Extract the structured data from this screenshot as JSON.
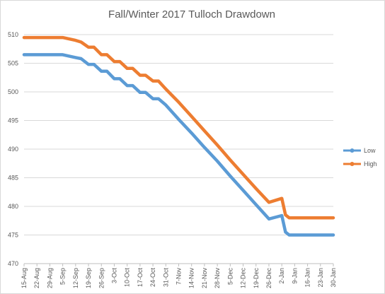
{
  "chart_data": {
    "type": "line",
    "title": "Fall/Winter 2017 Tulloch Drawdown",
    "xlabel": "",
    "ylabel": "",
    "ylim": [
      470,
      510
    ],
    "yticks": [
      470,
      475,
      480,
      485,
      490,
      495,
      500,
      505,
      510
    ],
    "grid": true,
    "legend_position": "right",
    "x_tick_labels": [
      "15-Aug",
      "22-Aug",
      "29-Aug",
      "5-Sep",
      "12-Sep",
      "19-Sep",
      "26-Sep",
      "3-Oct",
      "10-Oct",
      "17-Oct",
      "24-Oct",
      "31-Oct",
      "7-Nov",
      "14-Nov",
      "21-Nov",
      "28-Nov",
      "5-Dec",
      "12-Dec",
      "19-Dec",
      "26-Dec",
      "2-Jan",
      "9-Jan",
      "16-Jan",
      "23-Jan",
      "30-Jan"
    ],
    "x": [
      "15-Aug",
      "22-Aug",
      "29-Aug",
      "5-Sep",
      "12-Sep",
      "15-Sep",
      "19-Sep",
      "22-Sep",
      "26-Sep",
      "29-Sep",
      "3-Oct",
      "6-Oct",
      "10-Oct",
      "13-Oct",
      "17-Oct",
      "20-Oct",
      "24-Oct",
      "27-Oct",
      "31-Oct",
      "7-Nov",
      "14-Nov",
      "21-Nov",
      "28-Nov",
      "5-Dec",
      "12-Dec",
      "19-Dec",
      "26-Dec",
      "2-Jan",
      "4-Jan",
      "6-Jan",
      "9-Jan",
      "16-Jan",
      "23-Jan",
      "30-Jan"
    ],
    "series": [
      {
        "name": "Low",
        "color": "#5b9bd5",
        "values": [
          506.5,
          506.5,
          506.5,
          506.5,
          506.0,
          505.8,
          504.8,
          504.8,
          503.6,
          503.6,
          502.3,
          502.3,
          501.1,
          501.1,
          499.9,
          499.9,
          498.8,
          498.8,
          497.7,
          495.2,
          492.8,
          490.3,
          487.9,
          485.3,
          482.8,
          480.3,
          477.8,
          478.4,
          475.5,
          475.0,
          475.0,
          475.0,
          475.0,
          475.0
        ]
      },
      {
        "name": "High",
        "color": "#ed7d31",
        "values": [
          509.5,
          509.5,
          509.5,
          509.5,
          509.0,
          508.7,
          507.8,
          507.8,
          506.5,
          506.5,
          505.3,
          505.3,
          504.1,
          504.1,
          502.9,
          502.9,
          501.9,
          501.9,
          500.5,
          498.2,
          495.7,
          493.2,
          490.7,
          488.1,
          485.6,
          483.1,
          480.7,
          481.4,
          478.5,
          478.0,
          478.0,
          478.0,
          478.0,
          478.0
        ]
      }
    ]
  }
}
